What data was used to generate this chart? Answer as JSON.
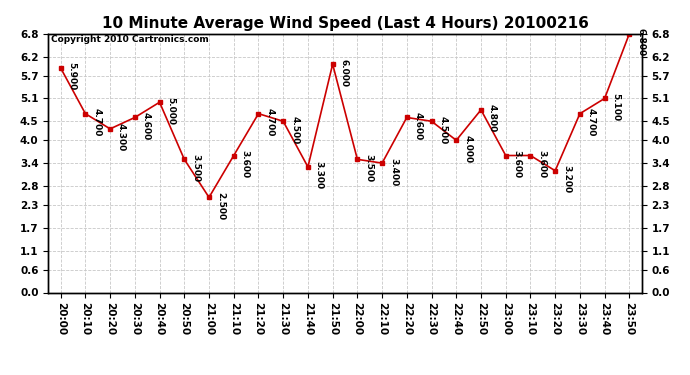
{
  "title": "10 Minute Average Wind Speed (Last 4 Hours) 20100216",
  "copyright": "Copyright 2010 Cartronics.com",
  "times": [
    "20:00",
    "20:10",
    "20:20",
    "20:30",
    "20:40",
    "20:50",
    "21:00",
    "21:10",
    "21:20",
    "21:30",
    "21:40",
    "21:50",
    "22:00",
    "22:10",
    "22:20",
    "22:30",
    "22:40",
    "22:50",
    "23:00",
    "23:10",
    "23:20",
    "23:30",
    "23:40",
    "23:50"
  ],
  "values": [
    5.9,
    4.7,
    4.3,
    4.6,
    5.0,
    3.5,
    2.5,
    3.6,
    4.7,
    4.5,
    3.3,
    6.0,
    3.5,
    3.4,
    4.6,
    4.5,
    4.0,
    4.8,
    3.6,
    3.6,
    3.2,
    4.7,
    5.1,
    6.8
  ],
  "point_labels": [
    "5.900",
    "4.700",
    "4.300",
    "4.600",
    "5.000",
    "3.500",
    "2.500",
    "3.600",
    "4.700",
    "4.500",
    "3.300",
    "6.000",
    "3.500",
    "3.400",
    "4.600",
    "4.500",
    "4.000",
    "4.800",
    "3.600",
    "3.600",
    "3.200",
    "4.700",
    "5.100",
    "6.800"
  ],
  "ylim": [
    0.0,
    6.8
  ],
  "yticks": [
    0.0,
    0.6,
    1.1,
    1.7,
    2.3,
    2.8,
    3.4,
    4.0,
    4.5,
    5.1,
    5.7,
    6.2,
    6.8
  ],
  "line_color": "#cc0000",
  "marker_color": "#cc0000",
  "bg_color": "#ffffff",
  "plot_bg_color": "#ffffff",
  "grid_color": "#c8c8c8",
  "title_fontsize": 11,
  "label_fontsize": 6.5,
  "tick_fontsize": 7.5,
  "copyright_fontsize": 6.5
}
